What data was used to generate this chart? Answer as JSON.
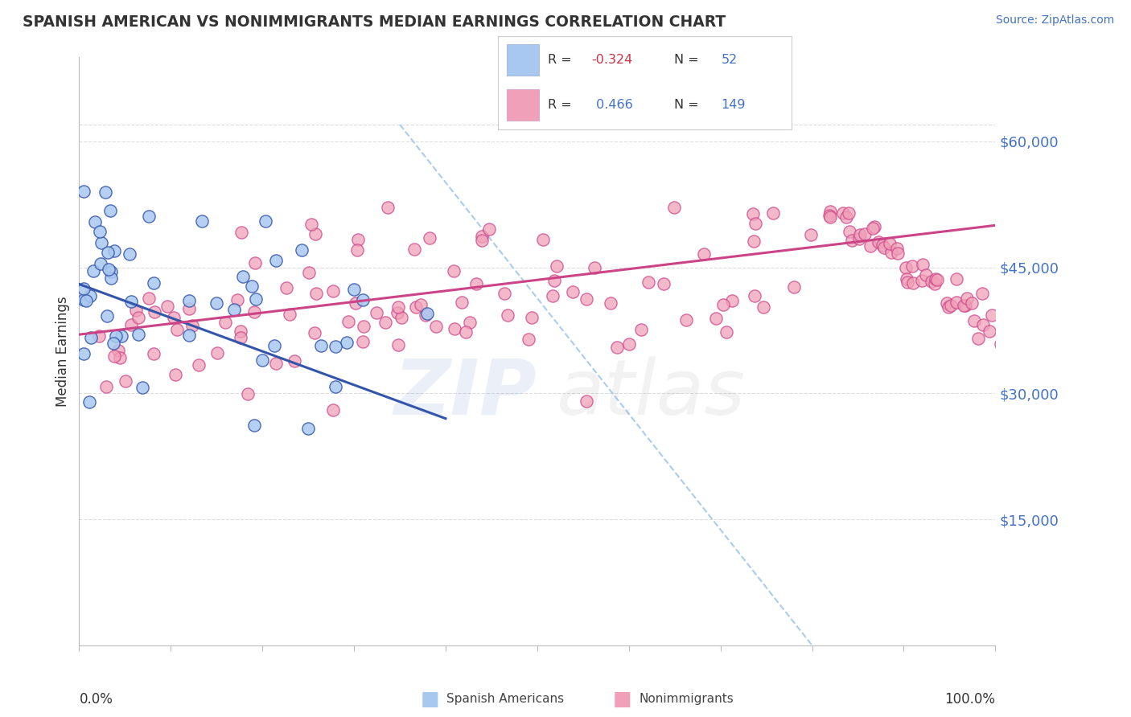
{
  "title": "SPANISH AMERICAN VS NONIMMIGRANTS MEDIAN EARNINGS CORRELATION CHART",
  "source_text": "Source: ZipAtlas.com",
  "ylabel": "Median Earnings",
  "y_ticks": [
    15000,
    30000,
    45000,
    60000
  ],
  "y_tick_labels": [
    "$15,000",
    "$30,000",
    "$45,000",
    "$60,000"
  ],
  "x_range": [
    0.0,
    100.0
  ],
  "y_range": [
    0,
    70000
  ],
  "color_blue": "#A8C8F0",
  "color_pink": "#F0A0B8",
  "color_blue_line": "#3355AA",
  "color_pink_line": "#CC4488",
  "color_blue_dark": "#4472C4",
  "background_color": "#FFFFFF",
  "grid_color": "#DDDDDD",
  "dashed_line_color": "#AACCEE",
  "legend_r1_val": "-0.324",
  "legend_n1_val": "52",
  "legend_r2_val": "0.466",
  "legend_n2_val": "149",
  "r_color": "#CC3344",
  "n_color": "#4472C4"
}
